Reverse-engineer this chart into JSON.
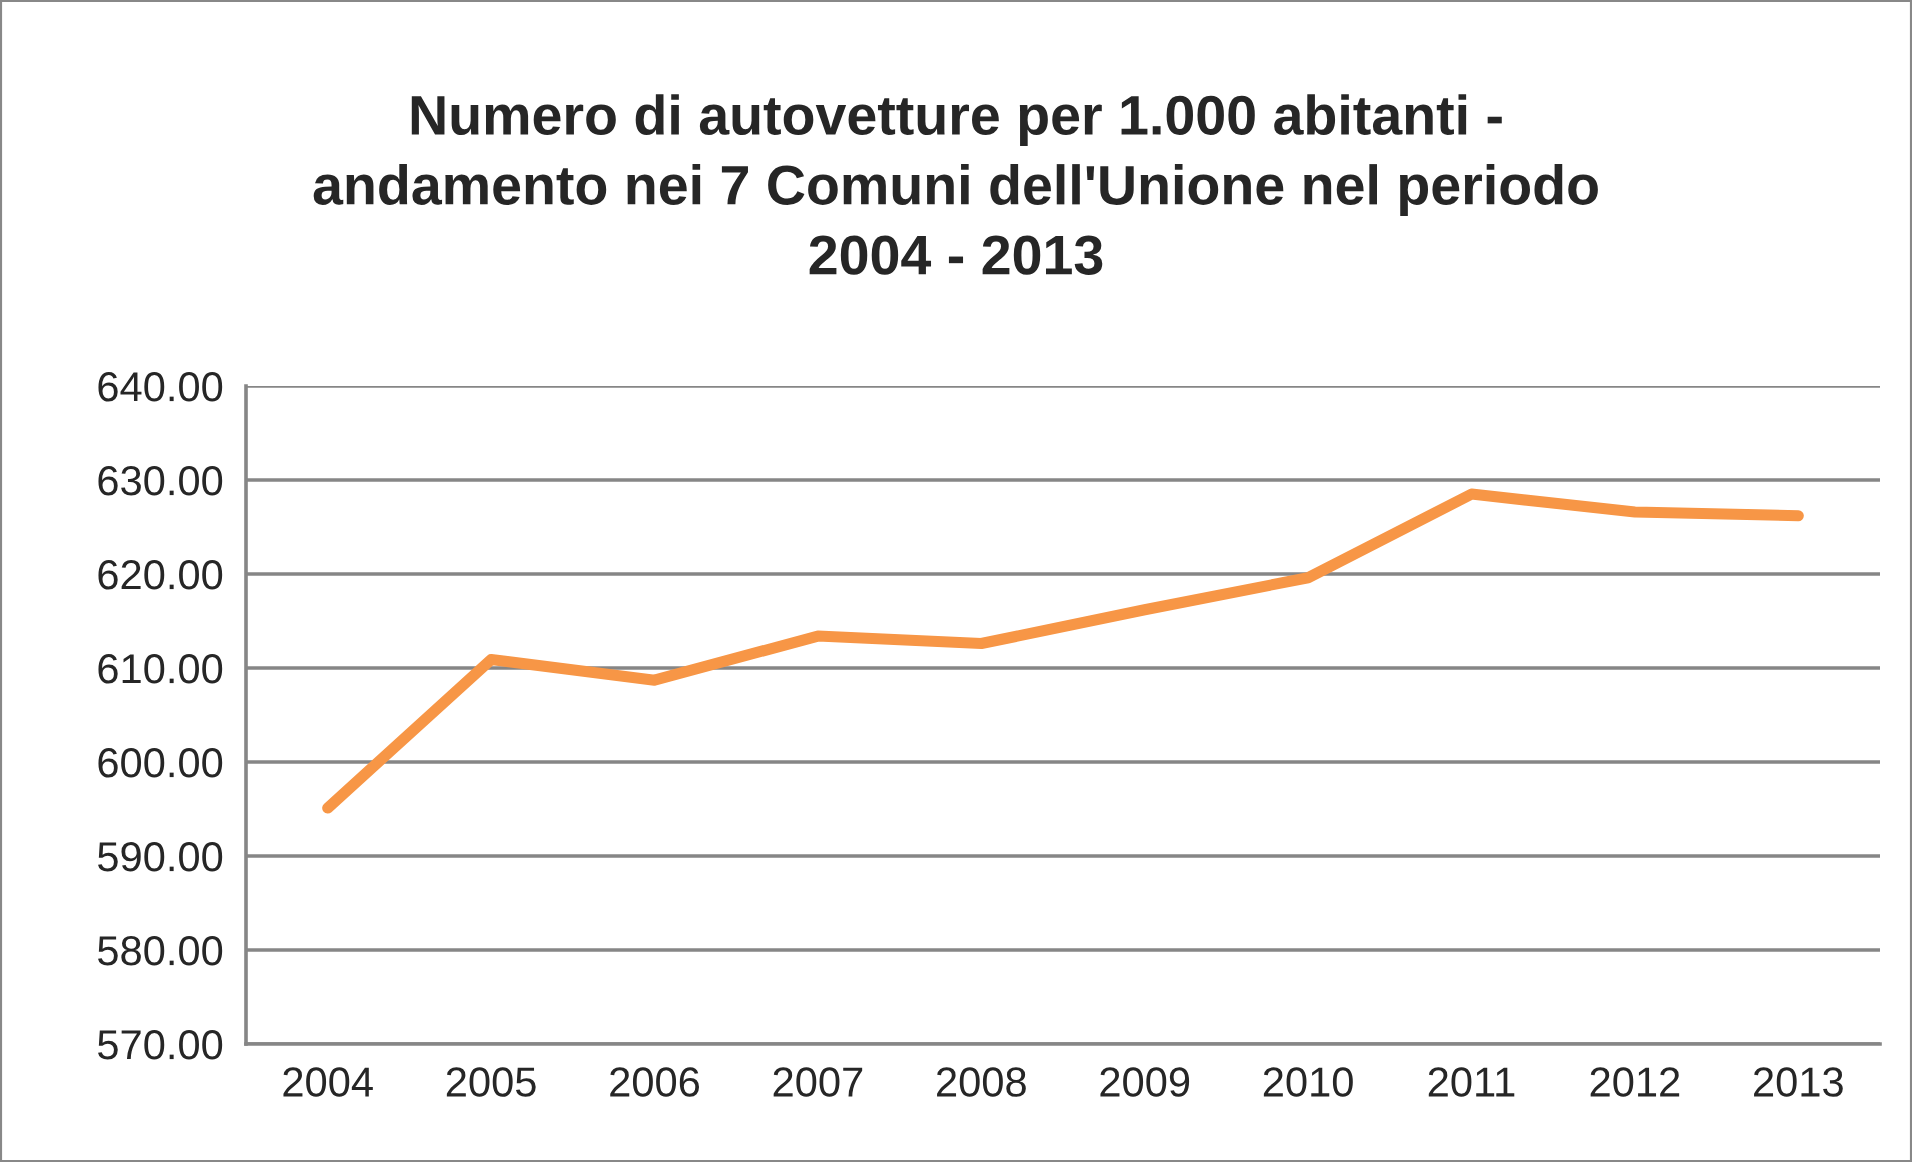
{
  "chart_data": {
    "type": "line",
    "title": "Numero di autovetture per 1.000 abitanti -\nandamento nei 7 Comuni dell'Unione nel periodo\n2004 - 2013",
    "categories": [
      "2004",
      "2005",
      "2006",
      "2007",
      "2008",
      "2009",
      "2010",
      "2011",
      "2012",
      "2013"
    ],
    "series": [
      {
        "color": "#f79646",
        "values": [
          595.1,
          610.9,
          608.7,
          613.4,
          612.6,
          616.2,
          619.6,
          628.5,
          626.6,
          626.2
        ]
      }
    ],
    "ylim": [
      570,
      640
    ],
    "yticks": [
      {
        "value": 570,
        "label": "570.00"
      },
      {
        "value": 580,
        "label": "580.00"
      },
      {
        "value": 590,
        "label": "590.00"
      },
      {
        "value": 600,
        "label": "600.00"
      },
      {
        "value": 610,
        "label": "610.00"
      },
      {
        "value": 620,
        "label": "620.00"
      },
      {
        "value": 630,
        "label": "630.00"
      },
      {
        "value": 640,
        "label": "640.00"
      }
    ],
    "grid": "y",
    "legend": false,
    "marker": "none",
    "line_style": "solid"
  }
}
